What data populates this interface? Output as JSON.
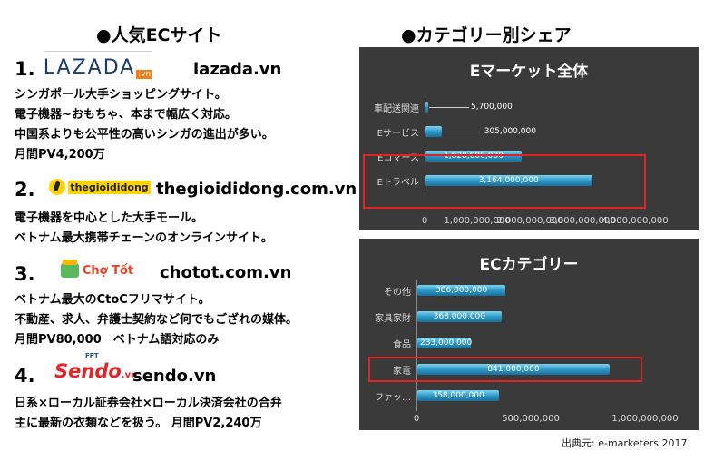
{
  "left_heading": "●人気ECサイト",
  "right_heading": "●カテゴリー別シェア",
  "sites": [
    {
      "num": "1.",
      "logo_text": "LAZADA",
      "logo_suffix": ".vn",
      "domain": "lazada.vn",
      "desc": [
        "シンガポール大手ショッピングサイト。",
        "電子機器~おもちゃ、本まで幅広く対応。",
        "中国系よりも公平性の高いシンガの進出が多い。",
        "月間PV4,200万"
      ]
    },
    {
      "num": "2.",
      "logo_text": "thegioididong",
      "domain": "thegioididong.com.vn",
      "desc": [
        "電子機器を中心とした大手モール。",
        "ベトナム最大携帯チェーンのオンラインサイト。"
      ]
    },
    {
      "num": "3.",
      "logo_text": "Chợ Tốt",
      "domain": "chotot.com.vn",
      "desc": [
        "ベトナム最大のCtoCフリマサイト。",
        "不動産、求人、弁護士契約など何でもござれの媒体。",
        "月間PV80,000　ベトナム語対応のみ"
      ]
    },
    {
      "num": "4.",
      "logo_text": "Sendo",
      "logo_suffix": ".vn",
      "logo_top": "FPT",
      "domain": "sendo.vn",
      "desc": [
        "日系×ローカル証券会社×ローカル決済会社の合弁",
        "主に最新の衣類などを扱う。 月間PV2,240万"
      ]
    }
  ],
  "colors": {
    "panel": "#3a3a3a",
    "bar": "#2a94c4",
    "highlight": "#e22323",
    "lazada": "#1c3c6b",
    "sendo": "#e3242b"
  },
  "chart_data": [
    {
      "type": "bar",
      "orientation": "horizontal",
      "title": "Eマーケット全体",
      "categories": [
        "車配送関連",
        "Eサービス",
        "Eコマース",
        "Eトラベル"
      ],
      "values": [
        5700000,
        305000000,
        1828000000,
        3164000000
      ],
      "value_labels": [
        "5,700,000",
        "305,000,000",
        "1,828,000,000",
        "3,164,000,000"
      ],
      "xticks": [
        "0",
        "1,000,000,000",
        "2,000,000,000",
        "3,000,000,000",
        "4,000,000,000"
      ],
      "xlim": [
        0,
        4000000000
      ],
      "highlight": [
        "Eコマース",
        "Eトラベル"
      ]
    },
    {
      "type": "bar",
      "orientation": "horizontal",
      "title": "ECカテゴリー",
      "categories": [
        "その他",
        "家具家財",
        "食品",
        "家電",
        "ファッ…"
      ],
      "values": [
        386000000,
        368000000,
        233000000,
        841000000,
        358000000
      ],
      "value_labels": [
        "386,000,000",
        "368,000,000",
        "233,000,000",
        "841,000,000",
        "358,000,000"
      ],
      "xticks": [
        "0",
        "500,000,000",
        "1,000,000,000"
      ],
      "xlim": [
        0,
        1000000000
      ],
      "highlight": [
        "家電"
      ]
    }
  ],
  "source": "出典元: e-marketers 2017"
}
